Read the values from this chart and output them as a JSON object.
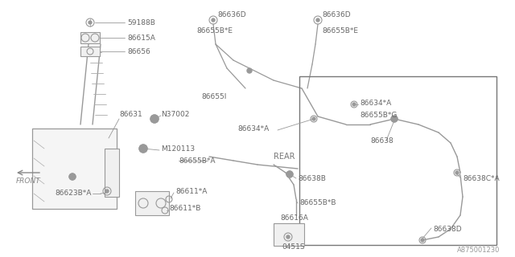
{
  "bg_color": "#ffffff",
  "line_color": "#999999",
  "text_color": "#666666",
  "diagram_id": "A875001230",
  "figsize": [
    6.4,
    3.2
  ],
  "dpi": 100,
  "xlim": [
    0,
    640
  ],
  "ylim": [
    0,
    320
  ]
}
